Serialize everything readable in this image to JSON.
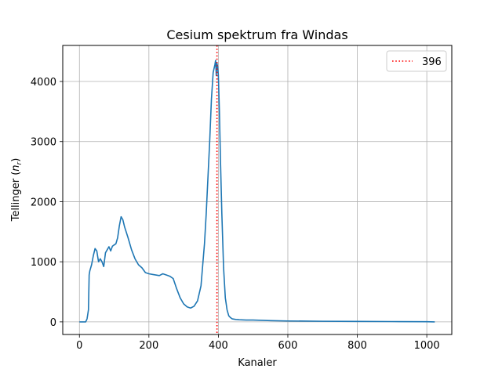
{
  "chart_data": {
    "type": "line",
    "title": "Cesium spektrum fra Windas",
    "xlabel": "Kanaler",
    "ylabel_main": "Tellinger (",
    "ylabel_var": "n",
    "ylabel_sub": "r",
    "ylabel_end": ")",
    "xlim": [
      -48,
      1072
    ],
    "ylim": [
      -210,
      4600
    ],
    "xticks": [
      0,
      200,
      400,
      600,
      800,
      1000
    ],
    "yticks": [
      0,
      1000,
      2000,
      3000,
      4000
    ],
    "grid": true,
    "legend_position": "top-right",
    "legend": [
      {
        "label": "396",
        "color": "#ff0000",
        "style": "dotted"
      }
    ],
    "vline": {
      "x": 396,
      "color": "#ff0000",
      "style": "dotted"
    },
    "series": [
      {
        "color": "#1f77b4",
        "x": [
          0,
          18,
          22,
          26,
          28,
          30,
          35,
          40,
          45,
          50,
          55,
          60,
          65,
          70,
          75,
          80,
          85,
          90,
          95,
          100,
          105,
          110,
          115,
          120,
          125,
          130,
          140,
          150,
          160,
          170,
          180,
          190,
          200,
          210,
          220,
          230,
          240,
          250,
          260,
          270,
          280,
          290,
          300,
          310,
          320,
          330,
          340,
          350,
          360,
          365,
          370,
          375,
          380,
          385,
          390,
          392,
          394,
          396,
          398,
          400,
          403,
          406,
          410,
          415,
          420,
          425,
          430,
          435,
          440,
          445,
          450,
          460,
          480,
          500,
          550,
          600,
          700,
          800,
          900,
          1000,
          1023
        ],
        "y": [
          0,
          0,
          50,
          200,
          780,
          850,
          950,
          1100,
          1220,
          1180,
          1000,
          1050,
          1000,
          920,
          1150,
          1200,
          1250,
          1180,
          1260,
          1280,
          1300,
          1400,
          1600,
          1750,
          1700,
          1580,
          1400,
          1200,
          1050,
          950,
          900,
          820,
          800,
          790,
          780,
          770,
          800,
          780,
          760,
          720,
          550,
          400,
          300,
          250,
          230,
          260,
          350,
          600,
          1300,
          1800,
          2400,
          3000,
          3700,
          4150,
          4280,
          4350,
          4100,
          4300,
          4250,
          4100,
          3500,
          2700,
          1800,
          900,
          400,
          200,
          100,
          70,
          50,
          45,
          40,
          35,
          30,
          30,
          20,
          15,
          10,
          8,
          5,
          3,
          0
        ]
      }
    ]
  }
}
